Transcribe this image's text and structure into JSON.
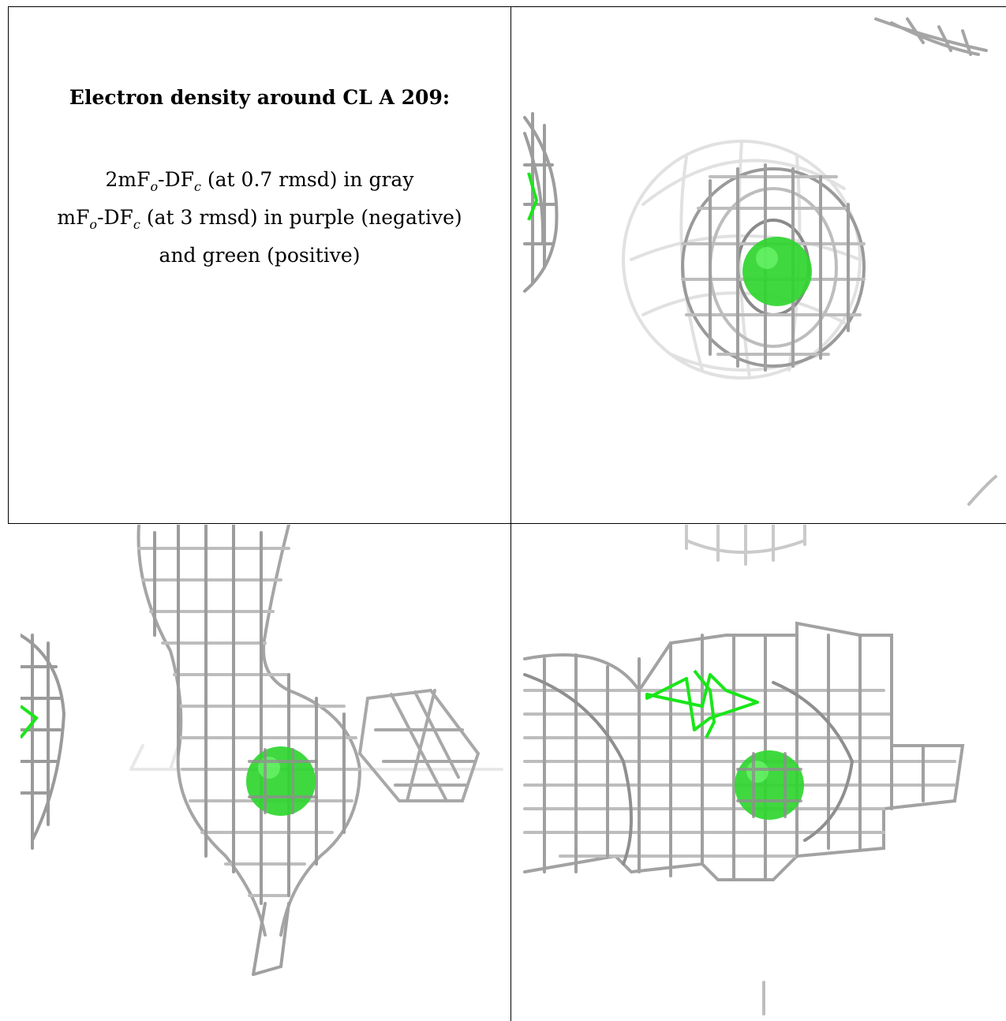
{
  "caption": {
    "title": "Electron density around CL A 209:",
    "line1": {
      "lead": "2mF",
      "sub1": "o",
      "mid": "-DF",
      "sub2": "c",
      "tail": " (at 0.7 rmsd) in gray"
    },
    "line2": {
      "lead": "mF",
      "sub1": "o",
      "mid": "-DF",
      "sub2": "c",
      "tail": " (at 3 rmsd) in purple (negative)"
    },
    "line3": "and green (positive)"
  },
  "colors": {
    "mesh": "#b9b9b9",
    "mesh_dark": "#7a7a7a",
    "atom": "#2fd62f",
    "positive": "#19e619"
  },
  "panels": [
    {
      "view": "top-right"
    },
    {
      "view": "bottom-left"
    },
    {
      "view": "bottom-right"
    }
  ]
}
